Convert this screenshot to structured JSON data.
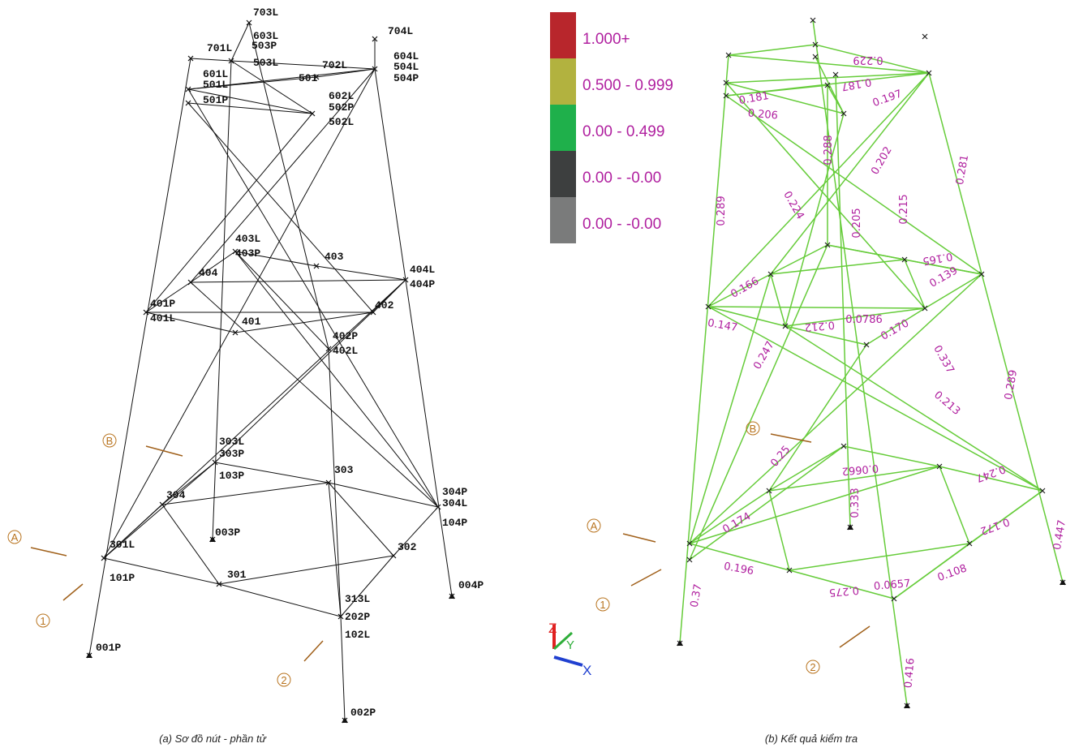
{
  "left_diagram": {
    "node_labels": [
      "703L",
      "704L",
      "701L",
      "603L",
      "503P",
      "503L",
      "702L",
      "604L",
      "504L",
      "504P",
      "601L",
      "501L",
      "501P",
      "501",
      "602L",
      "502P",
      "502L",
      "403L",
      "403P",
      "404",
      "403",
      "404L",
      "404P",
      "401P",
      "401L",
      "402",
      "401",
      "402P",
      "402L",
      "303L",
      "303P",
      "103P",
      "303",
      "304",
      "304P",
      "304L",
      "104P",
      "003P",
      "301L",
      "101P",
      "302",
      "301",
      "004P",
      "313L",
      "202P",
      "102L",
      "001P",
      "002P"
    ],
    "axis_markers": [
      "B",
      "A",
      "1",
      "2"
    ],
    "caption": "(a) Sơ đồ nút - phần tử"
  },
  "legend": {
    "items": [
      {
        "label": "1.000+",
        "color": "#b8262c"
      },
      {
        "label": "0.500 - 0.999",
        "color": "#b2b23f"
      },
      {
        "label": "0.00 - 0.499",
        "color": "#1fb04b"
      },
      {
        "label": "0.00 - -0.00",
        "color": "#3d3f3f"
      },
      {
        "label": "0.00 - -0.00",
        "color": "#7a7b7b"
      }
    ]
  },
  "right_diagram": {
    "values": [
      "0.289",
      "0.288",
      "0.202",
      "0.215",
      "0.281",
      "0.181",
      "0.206",
      "0.229",
      "0.187",
      "0.197",
      "0.224",
      "0.205",
      "0.166",
      "0.147",
      "0.139",
      "0.165",
      "0.212",
      "0.0786",
      "0.170",
      "0.337",
      "0.289",
      "0.213",
      "0.247",
      "0.25",
      "0.174",
      "0.196",
      "0.275",
      "0.0657",
      "0.108",
      "0.172",
      "0.247",
      "0.333",
      "0.37",
      "0.416",
      "0.447",
      "0.0662"
    ],
    "axis_markers": [
      "B",
      "A",
      "1",
      "2"
    ],
    "triad": [
      "Z",
      "Y",
      "X"
    ],
    "caption": "(b) Kết quả kiểm tra"
  }
}
